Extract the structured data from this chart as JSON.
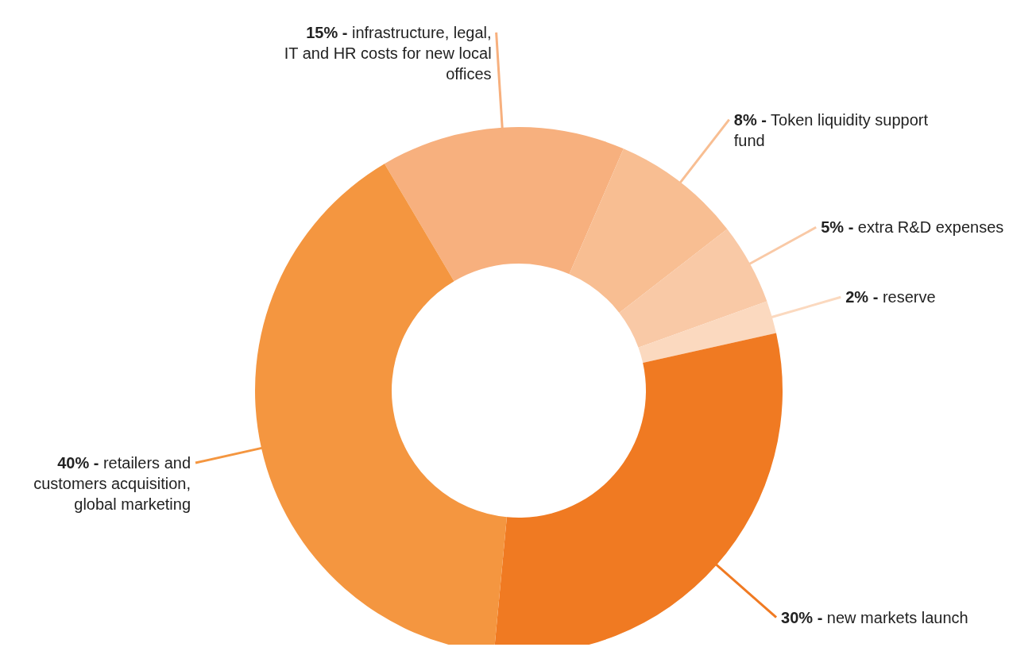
{
  "chart_data": {
    "type": "donut",
    "categories": [
      "infrastructure, legal, IT and HR costs for new local offices",
      "Token liquidity support fund",
      "extra R&D expenses",
      "reserve",
      "new markets launch",
      "retailers and customers acquisition, global marketing"
    ],
    "values": [
      15,
      8,
      5,
      2,
      30,
      40
    ],
    "value_labels": [
      "15% -",
      "8% -",
      "5% -",
      "2% -",
      "30% -",
      "40% -"
    ],
    "colors": [
      "#f7b07e",
      "#f8be92",
      "#f9c9a6",
      "#fbd9bf",
      "#f07a22",
      "#f49640"
    ]
  }
}
